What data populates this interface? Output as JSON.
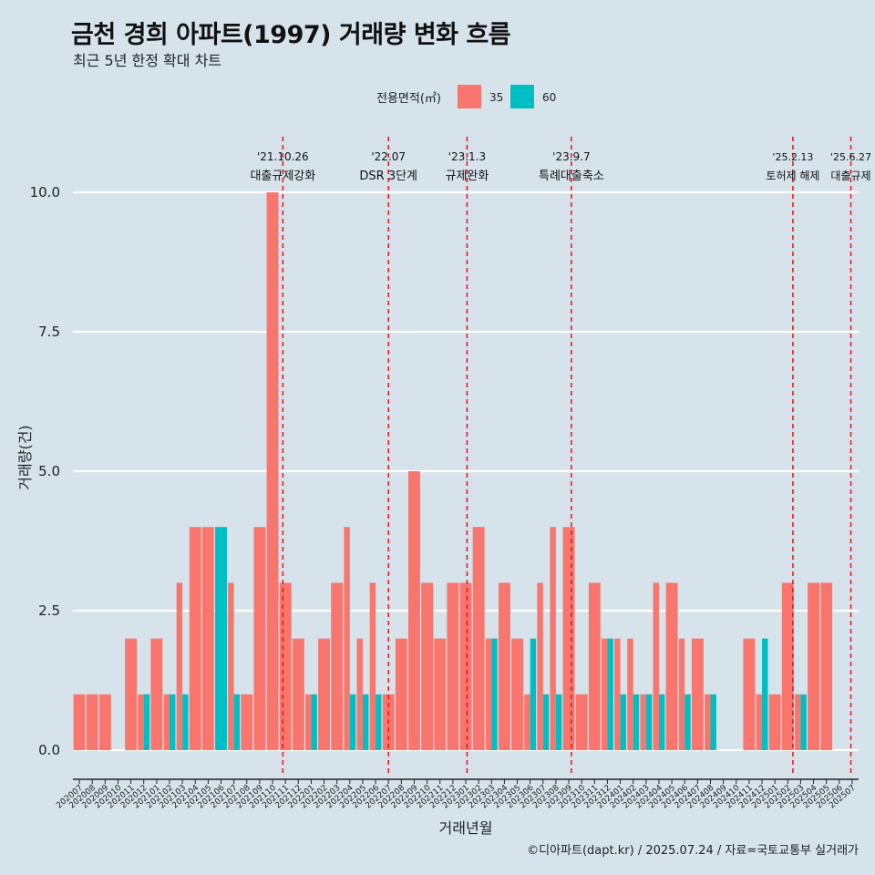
{
  "chart_data": {
    "type": "bar",
    "title": "금천 경희 아파트(1997) 거래량 변화 흐름",
    "subtitle": "최근 5년 한정 확대 차트",
    "xlabel": "거래년월",
    "ylabel": "거래량(건)",
    "ylim": [
      0,
      10
    ],
    "yticks": [
      "0.0",
      "2.5",
      "5.0",
      "7.5",
      "10.0"
    ],
    "ytick_values": [
      0,
      2.5,
      5,
      7.5,
      10
    ],
    "legend": {
      "title": "전용면적(㎡)",
      "position": "top"
    },
    "categories": [
      "202007",
      "202008",
      "202009",
      "202010",
      "202011",
      "202012",
      "202101",
      "202102",
      "202103",
      "202104",
      "202105",
      "202106",
      "202107",
      "202108",
      "202109",
      "202110",
      "202111",
      "202112",
      "202201",
      "202202",
      "202203",
      "202204",
      "202205",
      "202206",
      "202207",
      "202208",
      "202209",
      "202210",
      "202211",
      "202212",
      "202301",
      "202302",
      "202303",
      "202304",
      "202305",
      "202306",
      "202307",
      "202308",
      "202309",
      "202310",
      "202311",
      "202312",
      "202401",
      "202402",
      "202403",
      "202404",
      "202405",
      "202406",
      "202407",
      "202408",
      "202409",
      "202410",
      "202411",
      "202412",
      "202501",
      "202502",
      "202503",
      "202504",
      "202505",
      "202506",
      "202507"
    ],
    "series": [
      {
        "name": "35",
        "color": "#F8766D",
        "values": [
          1,
          1,
          1,
          0,
          2,
          1,
          2,
          1,
          3,
          4,
          4,
          0,
          3,
          1,
          4,
          10,
          3,
          2,
          1,
          2,
          3,
          4,
          2,
          3,
          1,
          2,
          5,
          3,
          2,
          3,
          3,
          4,
          2,
          3,
          2,
          1,
          3,
          4,
          4,
          1,
          3,
          2,
          2,
          2,
          1,
          3,
          3,
          2,
          2,
          1,
          0,
          0,
          2,
          1,
          1,
          3,
          1,
          3,
          3,
          0,
          0
        ]
      },
      {
        "name": "60",
        "color": "#00BFC4",
        "values": [
          0,
          0,
          0,
          0,
          0,
          1,
          0,
          1,
          1,
          0,
          0,
          4,
          1,
          0,
          0,
          0,
          0,
          0,
          1,
          0,
          0,
          1,
          1,
          1,
          0,
          0,
          0,
          0,
          0,
          0,
          0,
          0,
          2,
          0,
          0,
          2,
          1,
          1,
          0,
          0,
          0,
          2,
          1,
          1,
          1,
          1,
          0,
          1,
          0,
          1,
          0,
          0,
          0,
          2,
          0,
          0,
          1,
          0,
          0,
          0,
          0
        ]
      }
    ],
    "annotations": [
      {
        "date": "'21.10.26",
        "label": "대출규제강화",
        "index": 15.8
      },
      {
        "date": "'22.07",
        "label": "DSR 3단계",
        "index": 24.0
      },
      {
        "date": "'23.1.3",
        "label": "규제완화",
        "index": 30.1
      },
      {
        "date": "'23.9.7",
        "label": "특례대출축소",
        "index": 38.2
      },
      {
        "date": "'25.2.13",
        "label": "토허제 해제",
        "index": 55.4
      },
      {
        "date": "'25.6.27",
        "label": "대출규제",
        "index": 59.9
      }
    ]
  },
  "caption": "©디아파트(dapt.kr) / 2025.07.24 / 자료=국토교통부 실거래가"
}
